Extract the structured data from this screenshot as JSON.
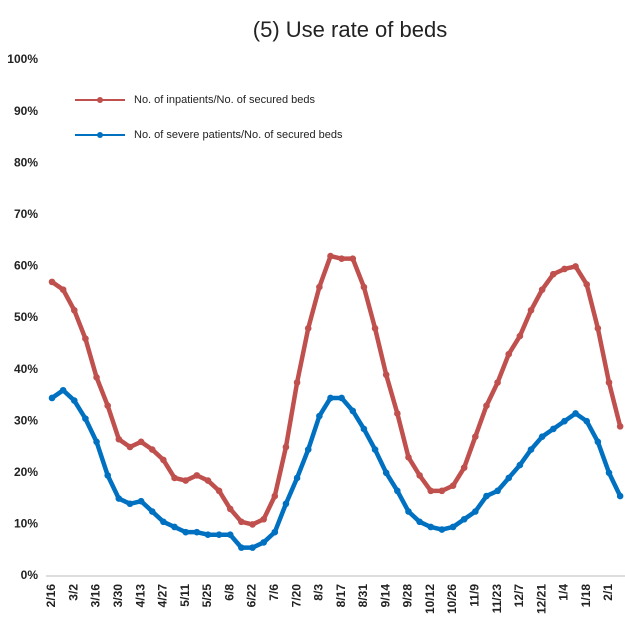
{
  "chart_data": {
    "type": "line",
    "title": "(5) Use rate of beds",
    "categories": [
      "2/16",
      null,
      "3/2",
      null,
      "3/16",
      null,
      "3/30",
      null,
      "4/13",
      null,
      "4/27",
      null,
      "5/11",
      null,
      "5/25",
      null,
      "6/8",
      null,
      "6/22",
      null,
      "7/6",
      null,
      "7/20",
      null,
      "8/3",
      null,
      "8/17",
      null,
      "8/31",
      null,
      "9/14",
      null,
      "9/28",
      null,
      "10/12",
      null,
      "10/26",
      null,
      "11/9",
      null,
      "11/23",
      null,
      "12/7",
      null,
      "12/21",
      null,
      "1/4",
      null,
      "1/18",
      null,
      "2/1",
      null
    ],
    "series": [
      {
        "name": "No. of inpatients/No. of secured beds",
        "color": "#c0504d",
        "values": [
          57,
          55.5,
          51.5,
          46,
          38.5,
          33,
          26.5,
          25,
          26,
          24.5,
          22.5,
          19,
          18.5,
          19.5,
          18.5,
          16.5,
          13,
          10.5,
          10,
          11,
          15.5,
          25,
          37.5,
          48,
          56,
          62,
          61.5,
          61.5,
          56,
          48,
          39,
          31.5,
          23,
          19.5,
          16.5,
          16.5,
          17.5,
          21,
          27,
          33,
          37.5,
          43,
          46.5,
          51.5,
          55.5,
          58.5,
          59.5,
          60,
          56.5,
          48,
          37.5,
          29
        ]
      },
      {
        "name": "No. of severe patients/No. of secured beds",
        "color": "#0070c0",
        "values": [
          34.5,
          36,
          34,
          30.5,
          26,
          19.5,
          15,
          14,
          14.5,
          12.5,
          10.5,
          9.5,
          8.5,
          8.5,
          8,
          8,
          8,
          5.5,
          5.5,
          6.5,
          8.5,
          14,
          19,
          24.5,
          31,
          34.5,
          34.5,
          32,
          28.5,
          24.5,
          20,
          16.5,
          12.5,
          10.5,
          9.5,
          9,
          9.5,
          11,
          12.5,
          15.5,
          16.5,
          19,
          21.5,
          24.5,
          27,
          28.5,
          30,
          31.5,
          30,
          26,
          20,
          15.5
        ]
      }
    ],
    "ylim": [
      0,
      100
    ],
    "yticks": [
      {
        "value": 0,
        "label": "0%"
      },
      {
        "value": 10,
        "label": "10%"
      },
      {
        "value": 20,
        "label": "20%"
      },
      {
        "value": 30,
        "label": "30%"
      },
      {
        "value": 40,
        "label": "40%"
      },
      {
        "value": 50,
        "label": "50%"
      },
      {
        "value": 60,
        "label": "60%"
      },
      {
        "value": 70,
        "label": "70%"
      },
      {
        "value": 80,
        "label": "80%"
      },
      {
        "value": 90,
        "label": "90%"
      },
      {
        "value": 100,
        "label": "100%"
      }
    ],
    "legend": "upper left",
    "grid": false
  }
}
